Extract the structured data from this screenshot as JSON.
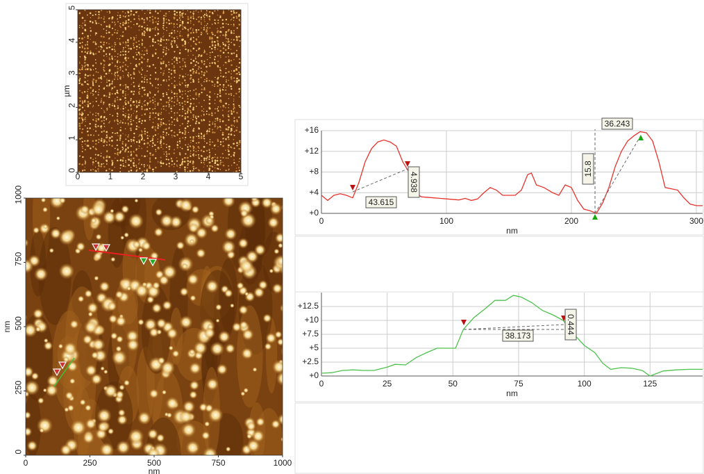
{
  "chart_data": [
    {
      "type": "image",
      "ylabel": "µm",
      "xlim": [
        0,
        5
      ],
      "ylim": [
        0,
        5
      ],
      "xticks": [
        0,
        1,
        2,
        3,
        4,
        5
      ],
      "yticks": [
        0,
        1,
        2,
        3,
        4,
        5
      ]
    },
    {
      "type": "image",
      "xlabel": "nm",
      "ylabel": "nm",
      "xlim": [
        0,
        1000
      ],
      "ylim": [
        0,
        1000
      ],
      "xticks": [
        0,
        250,
        500,
        750,
        1000
      ],
      "yticks": [
        0,
        250,
        500,
        750,
        1000
      ]
    },
    {
      "type": "line",
      "xlabel": "nm",
      "color": "#e8322c",
      "grid": true,
      "xlim": [
        0,
        305
      ],
      "ylim": [
        0,
        16
      ],
      "xticks": [
        0,
        100,
        200,
        300
      ],
      "yticks": [
        {
          "value": 0,
          "label": "+0"
        },
        {
          "value": 4,
          "label": "+4"
        },
        {
          "value": 8,
          "label": "+8"
        },
        {
          "value": 12,
          "label": "+12"
        },
        {
          "value": 16,
          "label": "+16"
        }
      ],
      "x": [
        0,
        5,
        10,
        15,
        20,
        25,
        30,
        35,
        40,
        45,
        50,
        55,
        60,
        65,
        70,
        75,
        80,
        90,
        100,
        110,
        115,
        120,
        125,
        130,
        135,
        140,
        145,
        155,
        160,
        165,
        168,
        172,
        178,
        185,
        190,
        195,
        200,
        205,
        210,
        215,
        220,
        225,
        230,
        235,
        240,
        245,
        250,
        255,
        260,
        265,
        270,
        275,
        285,
        290,
        295,
        300,
        305
      ],
      "values": [
        3.5,
        2.5,
        3.5,
        3.8,
        3.5,
        3.0,
        6,
        10,
        12.5,
        13.8,
        14.2,
        13.8,
        13,
        10,
        8,
        4,
        3.2,
        3.0,
        2.8,
        2.6,
        2.9,
        2.5,
        2.8,
        4,
        5,
        4.5,
        3.5,
        3.5,
        4.5,
        7.5,
        7.8,
        5.5,
        5,
        4,
        3.5,
        5.5,
        5,
        2.5,
        0.8,
        0.5,
        0,
        2,
        5,
        9,
        12,
        14,
        15,
        15.8,
        15.6,
        14,
        10,
        5,
        4.5,
        3,
        1.8,
        1.5,
        1.5
      ],
      "annotations": [
        "43.615",
        "4.938",
        "36.243",
        "15.8"
      ]
    },
    {
      "type": "line",
      "xlabel": "nm",
      "color": "#4cc24c",
      "grid": true,
      "xlim": [
        0,
        145
      ],
      "ylim": [
        0,
        15
      ],
      "xticks": [
        0,
        25,
        50,
        75,
        100,
        125
      ],
      "yticks": [
        {
          "value": 0,
          "label": "+0"
        },
        {
          "value": 2.5,
          "label": "+2.5"
        },
        {
          "value": 5,
          "label": "+5"
        },
        {
          "value": 7.5,
          "label": "+7.5"
        },
        {
          "value": 10,
          "label": "+10"
        },
        {
          "value": 12.5,
          "label": "+12.5"
        }
      ],
      "x": [
        0,
        4,
        8,
        12,
        16,
        20,
        25,
        28,
        32,
        36,
        40,
        44,
        48,
        51,
        54,
        58,
        62,
        66,
        70,
        73,
        76,
        80,
        84,
        88,
        92,
        95,
        100,
        104,
        107,
        110,
        114,
        118,
        122,
        125,
        130,
        135,
        140,
        145
      ],
      "values": [
        0.5,
        0.6,
        1.0,
        1.1,
        1.0,
        1.0,
        1.6,
        2.1,
        2.0,
        3.3,
        4.2,
        5,
        5,
        5,
        8.4,
        10.5,
        12,
        13.6,
        13.6,
        14.5,
        14.2,
        13.2,
        11.8,
        11,
        10,
        8,
        5.5,
        4.2,
        2.3,
        1.2,
        1.5,
        1.4,
        1.0,
        0,
        0.9,
        1.1,
        1.2,
        1.2
      ],
      "annotations": [
        "38.173",
        "0.444"
      ]
    }
  ]
}
